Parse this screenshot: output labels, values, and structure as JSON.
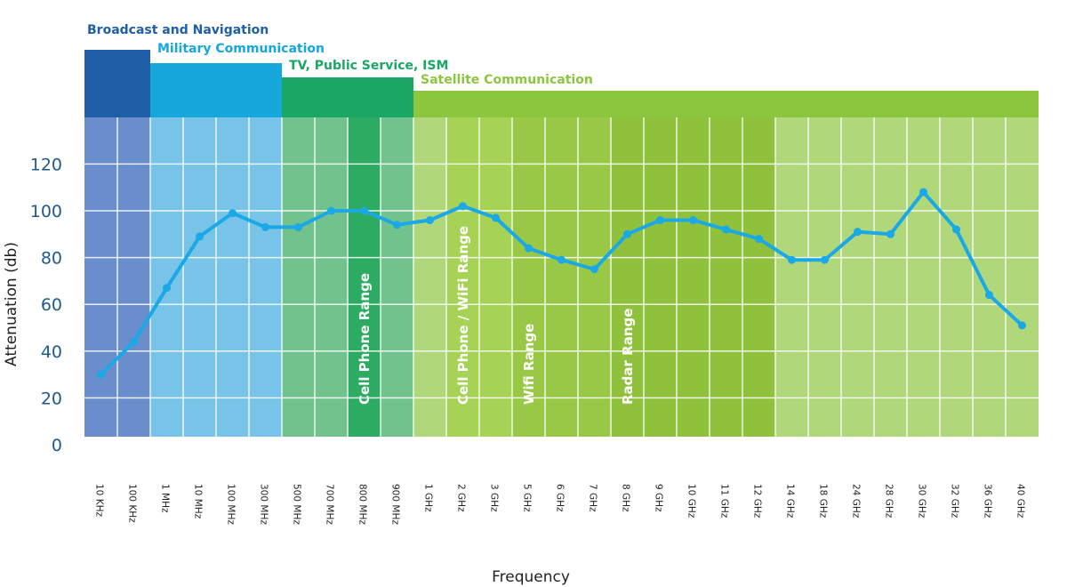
{
  "chart_data": {
    "type": "line",
    "xlabel": "Frequency",
    "ylabel": "Attenuation (db)",
    "ylim": [
      0,
      135
    ],
    "yticks": [
      0,
      20,
      40,
      60,
      80,
      100,
      120
    ],
    "grid": true,
    "categories": [
      "10 KHz",
      "100 KHz",
      "1 MHz",
      "10 MHz",
      "100 MHz",
      "300 MHz",
      "500 MHz",
      "700 MHz",
      "800 MHz",
      "900 MHz",
      "1 GHz",
      "2 GHz",
      "3 GHz",
      "5 GHz",
      "6 GHz",
      "7 GHz",
      "8 GHz",
      "9 GHz",
      "10 GHz",
      "11 GHz",
      "12 GHz",
      "14 GHz",
      "18 GHz",
      "24 GHz",
      "28 GHz",
      "30 GHz",
      "32 GHz",
      "36 GHz",
      "40 GHz"
    ],
    "series": [
      {
        "values": [
          30,
          44,
          67,
          89,
          99,
          93,
          93,
          100,
          100,
          94,
          96,
          102,
          97,
          84,
          79,
          75,
          90,
          96,
          96,
          92,
          88,
          79,
          79,
          91,
          90,
          108,
          92,
          64,
          51
        ]
      }
    ],
    "bands": [
      {
        "label": "Broadcast and Navigation",
        "color": "#1f5fa8",
        "start": 0,
        "end": 1
      },
      {
        "label": "Military Communication",
        "color": "#16a7dd",
        "start": 2,
        "end": 5
      },
      {
        "label": "TV, Public Service, ISM",
        "color": "#1aa766",
        "start": 6,
        "end": 9
      },
      {
        "label": "Satellite Communication",
        "color": "#8cc63f",
        "start": 10,
        "end": 28
      }
    ],
    "ranges": [
      {
        "label": "Cell Phone Range",
        "start": 8,
        "end": 8
      },
      {
        "label": "Cell Phone / WiFi Range",
        "start": 11,
        "end": 12
      },
      {
        "label": "Wifi Range",
        "start": 13,
        "end": 15
      },
      {
        "label": "Radar Range",
        "start": 16,
        "end": 20
      }
    ],
    "line_color": "#1aa9e6"
  }
}
